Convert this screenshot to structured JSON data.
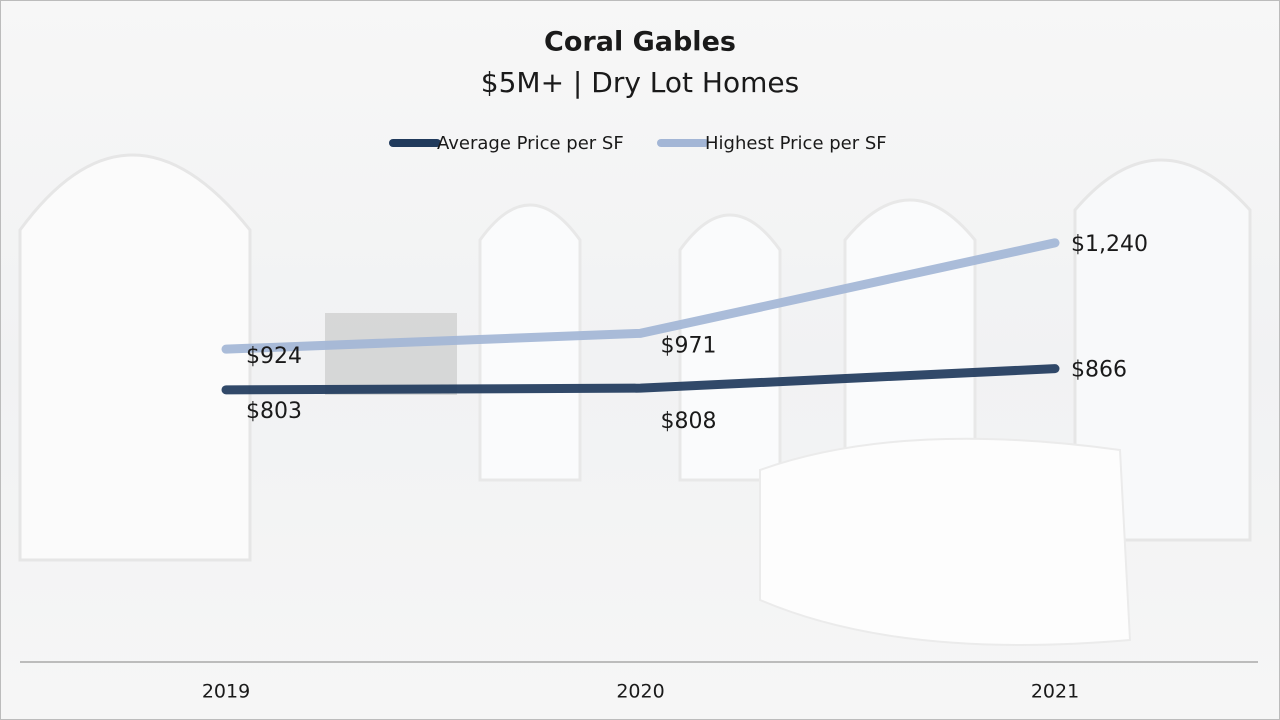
{
  "chart_data": {
    "type": "line",
    "title": "Coral Gables",
    "subtitle": "$5M+ | Dry Lot Homes",
    "categories": [
      "2019",
      "2020",
      "2021"
    ],
    "ylim": [
      0,
      1400
    ],
    "series": [
      {
        "name": "Average Price per SF",
        "color": "#203a5c",
        "values": [
          803,
          808,
          866
        ],
        "value_labels": [
          "$803",
          "$808",
          "$866"
        ]
      },
      {
        "name": "Highest Price per SF",
        "color": "#a3b6d6",
        "values": [
          924,
          971,
          1240
        ],
        "value_labels": [
          "$924",
          "$971",
          "$1,240"
        ]
      }
    ]
  }
}
